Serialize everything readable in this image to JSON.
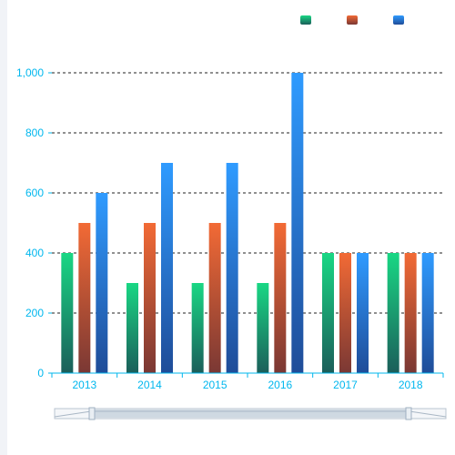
{
  "chart_data": {
    "type": "bar",
    "title": "",
    "xlabel": "",
    "ylabel": "",
    "categories": [
      "2013",
      "2014",
      "2015",
      "2016",
      "2017",
      "2018"
    ],
    "series": [
      {
        "values": [
          400,
          300,
          300,
          300,
          400,
          400
        ],
        "color_top": "#19d784",
        "color_bottom": "#1b5e5a"
      },
      {
        "values": [
          500,
          500,
          500,
          500,
          400,
          400
        ],
        "color_top": "#f26a35",
        "color_bottom": "#7a3834"
      },
      {
        "values": [
          600,
          700,
          700,
          1000,
          400,
          400
        ],
        "color_top": "#2f9bff",
        "color_bottom": "#1f4c98"
      }
    ],
    "ylim": [
      0,
      1000
    ],
    "yticks": [
      0,
      200,
      400,
      600,
      800,
      1000
    ],
    "ytick_labels": [
      "0",
      "200",
      "400",
      "600",
      "800",
      "1,000"
    ],
    "grid": "dashed horizontal",
    "legend_position": "top-right",
    "axis_color": "#00b7ee",
    "grid_color": "#222222"
  },
  "data_zoom": {
    "visible": true,
    "start": 0,
    "end": 100
  }
}
